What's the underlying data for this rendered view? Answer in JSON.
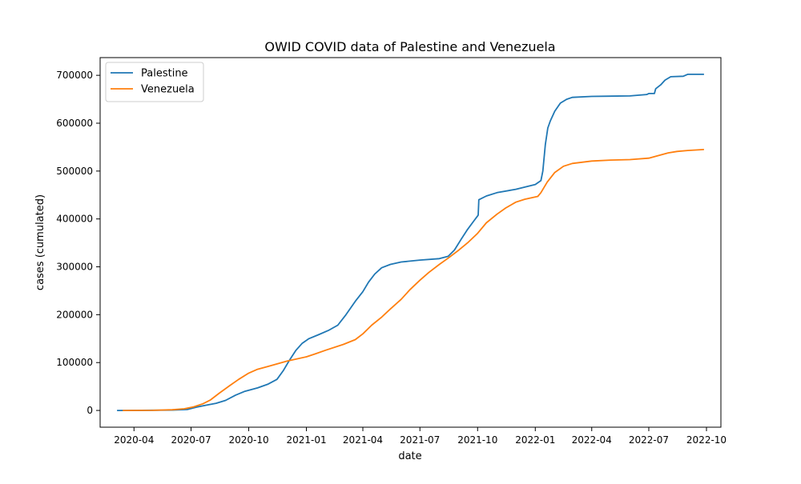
{
  "chart_data": {
    "type": "line",
    "title": "OWID COVID data of Palestine and Venezuela",
    "xlabel": "date",
    "ylabel": "cases (cumulated)",
    "xlim": [
      "2020-02-07",
      "2022-10-24"
    ],
    "ylim": [
      -35000,
      737000
    ],
    "xticks": [
      {
        "date": "2020-04-01",
        "label": "2020-04"
      },
      {
        "date": "2020-07-01",
        "label": "2020-07"
      },
      {
        "date": "2020-10-01",
        "label": "2020-10"
      },
      {
        "date": "2021-01-01",
        "label": "2021-01"
      },
      {
        "date": "2021-04-01",
        "label": "2021-04"
      },
      {
        "date": "2021-07-01",
        "label": "2021-07"
      },
      {
        "date": "2021-10-01",
        "label": "2021-10"
      },
      {
        "date": "2022-01-01",
        "label": "2022-01"
      },
      {
        "date": "2022-04-01",
        "label": "2022-04"
      },
      {
        "date": "2022-07-01",
        "label": "2022-07"
      },
      {
        "date": "2022-10-01",
        "label": "2022-10"
      }
    ],
    "yticks": [
      {
        "value": 0,
        "label": "0"
      },
      {
        "value": 100000,
        "label": "100000"
      },
      {
        "value": 200000,
        "label": "200000"
      },
      {
        "value": 300000,
        "label": "300000"
      },
      {
        "value": 400000,
        "label": "400000"
      },
      {
        "value": 500000,
        "label": "500000"
      },
      {
        "value": 600000,
        "label": "600000"
      },
      {
        "value": 700000,
        "label": "700000"
      }
    ],
    "grid": false,
    "legend": {
      "placement": "upper-left"
    },
    "series": [
      {
        "name": "Palestine",
        "color": "#1f77b4",
        "points": [
          [
            "2020-03-05",
            0
          ],
          [
            "2020-05-01",
            500
          ],
          [
            "2020-06-01",
            700
          ],
          [
            "2020-06-25",
            2000
          ],
          [
            "2020-07-10",
            7000
          ],
          [
            "2020-07-25",
            11000
          ],
          [
            "2020-08-10",
            15000
          ],
          [
            "2020-08-25",
            21000
          ],
          [
            "2020-09-10",
            32000
          ],
          [
            "2020-09-25",
            40000
          ],
          [
            "2020-10-15",
            47000
          ],
          [
            "2020-11-01",
            55000
          ],
          [
            "2020-11-15",
            65000
          ],
          [
            "2020-11-25",
            83000
          ],
          [
            "2020-12-05",
            105000
          ],
          [
            "2020-12-15",
            125000
          ],
          [
            "2020-12-25",
            140000
          ],
          [
            "2021-01-05",
            150000
          ],
          [
            "2021-01-20",
            158000
          ],
          [
            "2021-02-05",
            167000
          ],
          [
            "2021-02-20",
            178000
          ],
          [
            "2021-03-05",
            200000
          ],
          [
            "2021-03-20",
            228000
          ],
          [
            "2021-04-01",
            248000
          ],
          [
            "2021-04-10",
            268000
          ],
          [
            "2021-04-20",
            285000
          ],
          [
            "2021-05-01",
            298000
          ],
          [
            "2021-05-15",
            305000
          ],
          [
            "2021-06-01",
            310000
          ],
          [
            "2021-07-01",
            314000
          ],
          [
            "2021-08-01",
            317000
          ],
          [
            "2021-08-15",
            322000
          ],
          [
            "2021-08-25",
            335000
          ],
          [
            "2021-09-05",
            358000
          ],
          [
            "2021-09-15",
            378000
          ],
          [
            "2021-09-25",
            396000
          ],
          [
            "2021-10-02",
            408000
          ],
          [
            "2021-10-03",
            440000
          ],
          [
            "2021-10-15",
            448000
          ],
          [
            "2021-11-01",
            455000
          ],
          [
            "2021-12-01",
            462000
          ],
          [
            "2022-01-01",
            472000
          ],
          [
            "2022-01-10",
            480000
          ],
          [
            "2022-01-13",
            500000
          ],
          [
            "2022-01-17",
            555000
          ],
          [
            "2022-01-21",
            590000
          ],
          [
            "2022-01-25",
            605000
          ],
          [
            "2022-02-01",
            625000
          ],
          [
            "2022-02-10",
            642000
          ],
          [
            "2022-02-20",
            650000
          ],
          [
            "2022-03-01",
            654000
          ],
          [
            "2022-04-01",
            656000
          ],
          [
            "2022-06-01",
            657000
          ],
          [
            "2022-06-28",
            660000
          ],
          [
            "2022-07-01",
            662000
          ],
          [
            "2022-07-10",
            662000
          ],
          [
            "2022-07-12",
            672000
          ],
          [
            "2022-07-20",
            680000
          ],
          [
            "2022-07-27",
            690000
          ],
          [
            "2022-08-05",
            697000
          ],
          [
            "2022-08-25",
            698000
          ],
          [
            "2022-09-01",
            702000
          ],
          [
            "2022-09-27",
            702000
          ]
        ]
      },
      {
        "name": "Venezuela",
        "color": "#ff7f0e",
        "points": [
          [
            "2020-03-14",
            0
          ],
          [
            "2020-05-01",
            300
          ],
          [
            "2020-06-01",
            1500
          ],
          [
            "2020-06-20",
            3500
          ],
          [
            "2020-07-05",
            7500
          ],
          [
            "2020-07-20",
            14000
          ],
          [
            "2020-08-01",
            22000
          ],
          [
            "2020-08-15",
            36000
          ],
          [
            "2020-09-01",
            52000
          ],
          [
            "2020-09-15",
            65000
          ],
          [
            "2020-10-01",
            78000
          ],
          [
            "2020-10-15",
            86000
          ],
          [
            "2020-11-01",
            92000
          ],
          [
            "2020-12-01",
            103000
          ],
          [
            "2021-01-01",
            112000
          ],
          [
            "2021-01-15",
            118000
          ],
          [
            "2021-02-01",
            126000
          ],
          [
            "2021-03-01",
            138000
          ],
          [
            "2021-03-20",
            148000
          ],
          [
            "2021-04-01",
            160000
          ],
          [
            "2021-04-15",
            178000
          ],
          [
            "2021-05-01",
            195000
          ],
          [
            "2021-05-15",
            212000
          ],
          [
            "2021-06-01",
            232000
          ],
          [
            "2021-06-15",
            252000
          ],
          [
            "2021-07-01",
            272000
          ],
          [
            "2021-07-15",
            288000
          ],
          [
            "2021-08-01",
            305000
          ],
          [
            "2021-08-15",
            318000
          ],
          [
            "2021-09-01",
            335000
          ],
          [
            "2021-09-15",
            350000
          ],
          [
            "2021-10-01",
            370000
          ],
          [
            "2021-10-15",
            392000
          ],
          [
            "2021-11-01",
            410000
          ],
          [
            "2021-11-15",
            423000
          ],
          [
            "2021-12-01",
            435000
          ],
          [
            "2021-12-15",
            441000
          ],
          [
            "2022-01-05",
            447000
          ],
          [
            "2022-01-10",
            455000
          ],
          [
            "2022-01-20",
            477000
          ],
          [
            "2022-02-01",
            497000
          ],
          [
            "2022-02-15",
            510000
          ],
          [
            "2022-03-01",
            516000
          ],
          [
            "2022-04-01",
            521000
          ],
          [
            "2022-05-01",
            523000
          ],
          [
            "2022-06-01",
            524000
          ],
          [
            "2022-07-01",
            527000
          ],
          [
            "2022-07-15",
            532000
          ],
          [
            "2022-08-01",
            538000
          ],
          [
            "2022-08-15",
            541000
          ],
          [
            "2022-09-01",
            543000
          ],
          [
            "2022-09-27",
            545000
          ]
        ]
      }
    ]
  }
}
